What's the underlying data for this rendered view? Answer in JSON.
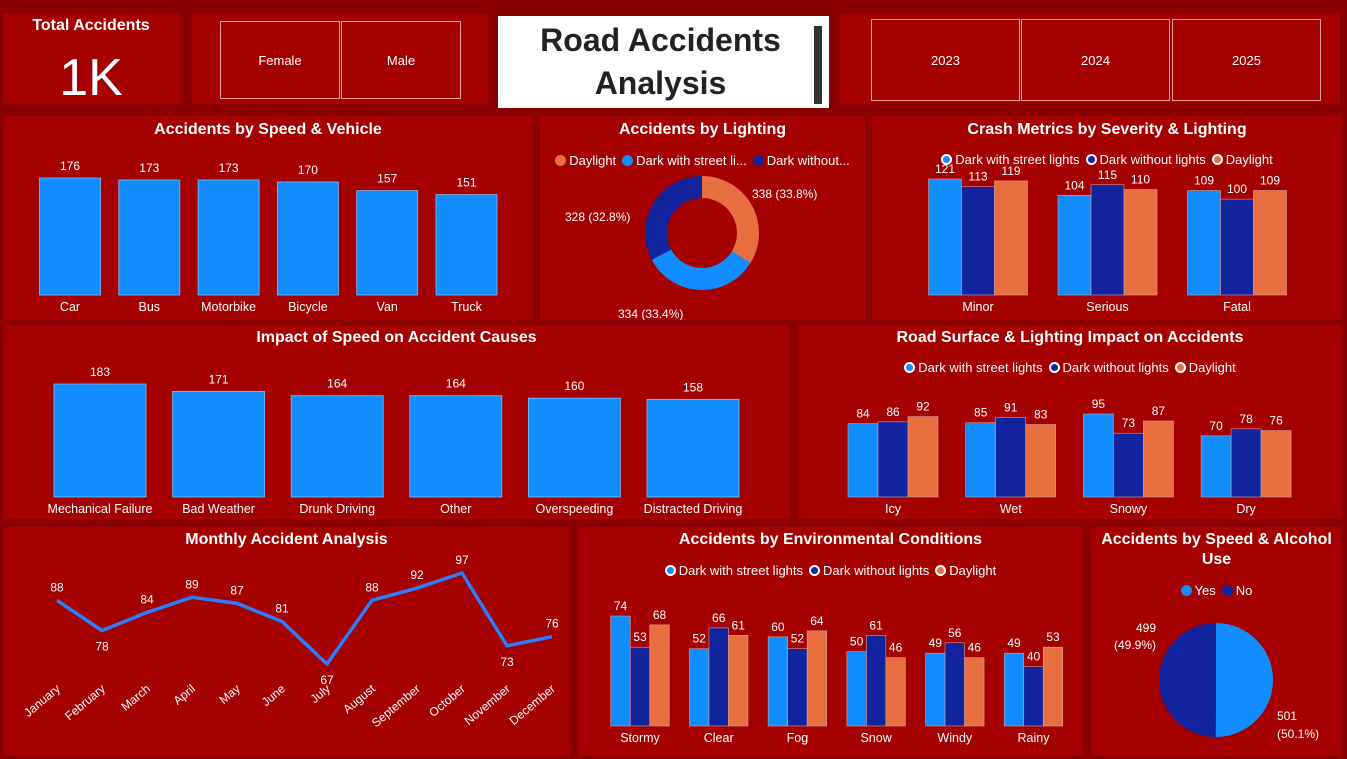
{
  "colors": {
    "daylight": "#e87040",
    "street": "#118dff",
    "without": "#12239e",
    "yes": "#118dff",
    "no": "#12239e",
    "line": "#2b7fff"
  },
  "kpi": {
    "label": "Total Accidents",
    "value": "1K"
  },
  "gender_slicer": [
    "Female",
    "Male"
  ],
  "title": {
    "line1": "Road Accidents",
    "line2": "Analysis"
  },
  "year_slicer": [
    "2023",
    "2024",
    "2025"
  ],
  "speed_vehicle": {
    "title": "Accidents by Speed & Vehicle",
    "chart_data": {
      "type": "bar",
      "categories": [
        "Car",
        "Bus",
        "Motorbike",
        "Bicycle",
        "Van",
        "Truck"
      ],
      "values": [
        176,
        173,
        173,
        170,
        157,
        151
      ]
    }
  },
  "lighting": {
    "title": "Accidents by Lighting",
    "legend": [
      "Daylight",
      "Dark with street li...",
      "Dark without..."
    ],
    "chart_data": {
      "type": "pie",
      "categories": [
        "Daylight",
        "Dark with street lights",
        "Dark without lights"
      ],
      "values": [
        338,
        334,
        328
      ],
      "labels": [
        "338 (33.8%)",
        "334 (33.4%)",
        "328 (32.8%)"
      ]
    }
  },
  "severity": {
    "title": "Crash Metrics by Severity & Lighting",
    "legend": [
      "Dark with street lights",
      "Dark without lights",
      "Daylight"
    ],
    "chart_data": {
      "type": "bar",
      "categories": [
        "Minor",
        "Serious",
        "Fatal"
      ],
      "series": [
        {
          "name": "Dark with street lights",
          "values": [
            121,
            104,
            109
          ]
        },
        {
          "name": "Dark without lights",
          "values": [
            113,
            115,
            100
          ]
        },
        {
          "name": "Daylight",
          "values": [
            119,
            110,
            109
          ]
        }
      ]
    }
  },
  "causes": {
    "title": "Impact of Speed on Accident Causes",
    "chart_data": {
      "type": "bar",
      "categories": [
        "Mechanical Failure",
        "Bad Weather",
        "Drunk Driving",
        "Other",
        "Overspeeding",
        "Distracted Driving"
      ],
      "values": [
        183,
        171,
        164,
        164,
        160,
        158
      ]
    }
  },
  "surface": {
    "title": "Road Surface & Lighting Impact on Accidents",
    "legend": [
      "Dark with street lights",
      "Dark without lights",
      "Daylight"
    ],
    "chart_data": {
      "type": "bar",
      "categories": [
        "Icy",
        "Wet",
        "Snowy",
        "Dry"
      ],
      "series": [
        {
          "name": "Dark with street lights",
          "values": [
            84,
            85,
            95,
            70
          ]
        },
        {
          "name": "Dark without lights",
          "values": [
            86,
            91,
            73,
            78
          ]
        },
        {
          "name": "Daylight",
          "values": [
            92,
            83,
            87,
            76
          ]
        }
      ]
    }
  },
  "monthly": {
    "title": "Monthly Accident Analysis",
    "chart_data": {
      "type": "line",
      "categories": [
        "January",
        "February",
        "March",
        "April",
        "May",
        "June",
        "July",
        "August",
        "September",
        "October",
        "November",
        "December"
      ],
      "values": [
        88,
        78,
        84,
        89,
        87,
        81,
        67,
        88,
        92,
        97,
        73,
        76
      ]
    }
  },
  "environment": {
    "title": "Accidents by Environmental Conditions",
    "legend": [
      "Dark with street lights",
      "Dark without lights",
      "Daylight"
    ],
    "chart_data": {
      "type": "bar",
      "categories": [
        "Stormy",
        "Clear",
        "Fog",
        "Snow",
        "Windy",
        "Rainy"
      ],
      "series": [
        {
          "name": "Dark with street lights",
          "values": [
            74,
            52,
            60,
            50,
            49,
            49
          ]
        },
        {
          "name": "Dark without lights",
          "values": [
            53,
            66,
            52,
            61,
            56,
            40
          ]
        },
        {
          "name": "Daylight",
          "values": [
            68,
            61,
            64,
            46,
            46,
            53
          ]
        }
      ]
    }
  },
  "alcohol": {
    "title_line1": "Accidents by Speed & Alcohol",
    "title_line2": "Use",
    "legend": [
      "Yes",
      "No"
    ],
    "chart_data": {
      "type": "pie",
      "categories": [
        "Yes",
        "No"
      ],
      "values": [
        501,
        499
      ],
      "labels_value": [
        "501",
        "499"
      ],
      "labels_pct": [
        "(50.1%)",
        "(49.9%)"
      ]
    }
  }
}
